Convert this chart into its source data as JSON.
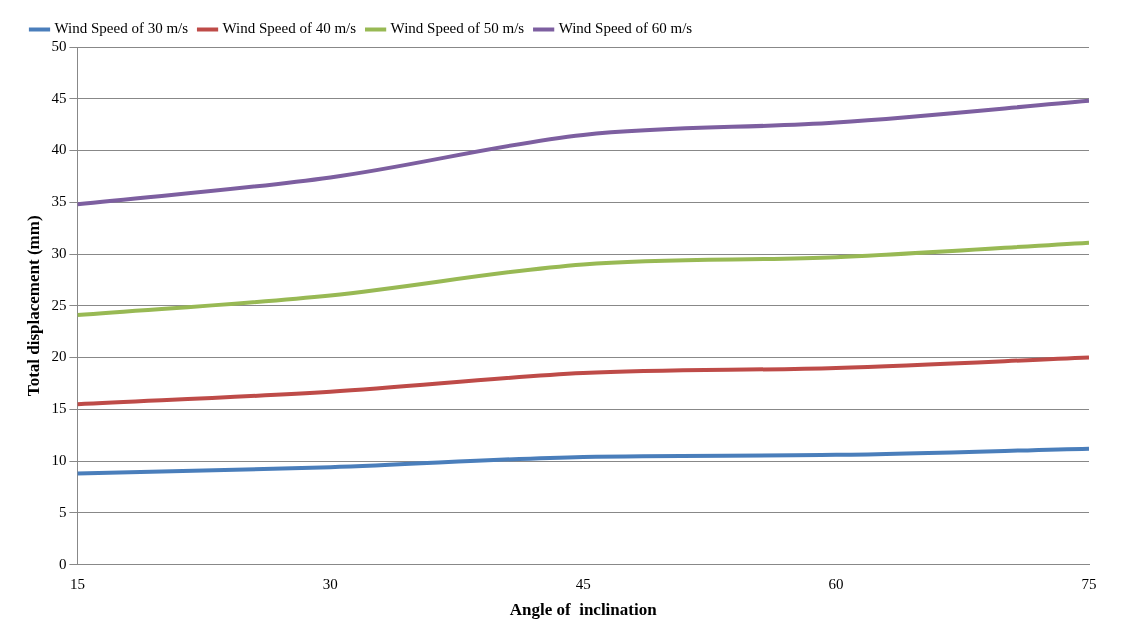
{
  "chart_data": {
    "type": "line",
    "xlabel": "Angle of  inclination",
    "ylabel": "Total displacement (mm)",
    "x": [
      15,
      30,
      45,
      60,
      75
    ],
    "series": [
      {
        "name": "Wind Speed of 30 m/s",
        "color": "#4a7ebb",
        "values": [
          8.8,
          9.4,
          10.4,
          10.6,
          11.2
        ]
      },
      {
        "name": "Wind Speed of 40 m/s",
        "color": "#be4b48",
        "values": [
          15.5,
          16.7,
          18.5,
          19.0,
          20.0
        ]
      },
      {
        "name": "Wind Speed of 50 m/s",
        "color": "#98b954",
        "values": [
          24.1,
          26.0,
          29.0,
          29.7,
          31.1
        ]
      },
      {
        "name": "Wind Speed of 60 m/s",
        "color": "#7d5fa0",
        "values": [
          34.8,
          37.4,
          41.5,
          42.7,
          44.8
        ]
      }
    ],
    "xlim": [
      15,
      75
    ],
    "xticks": [
      15,
      30,
      45,
      60,
      75
    ],
    "ylim": [
      0,
      50
    ],
    "yticks": [
      0,
      5,
      10,
      15,
      20,
      25,
      30,
      35,
      40,
      45,
      50
    ],
    "grid": "y",
    "legend": "top",
    "marker": "none",
    "line_style": "solid"
  }
}
